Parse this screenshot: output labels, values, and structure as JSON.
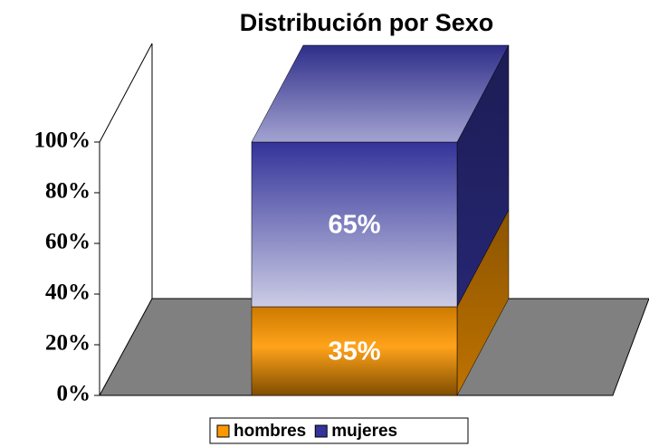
{
  "chart_data": {
    "type": "bar3d_stacked",
    "title": "Distribución por Sexo",
    "categories": [
      null
    ],
    "series": [
      {
        "name": "hombres",
        "color": "#ff9900",
        "values": [
          35
        ],
        "value_labels": [
          "35%"
        ]
      },
      {
        "name": "mujeres",
        "color": "#333399",
        "values": [
          65
        ],
        "value_labels": [
          "65%"
        ]
      }
    ],
    "ylim": [
      0,
      100
    ],
    "yticks": [
      {
        "value": 0,
        "label": "0%"
      },
      {
        "value": 20,
        "label": "20%"
      },
      {
        "value": 40,
        "label": "40%"
      },
      {
        "value": 60,
        "label": "60%"
      },
      {
        "value": 80,
        "label": "80%"
      },
      {
        "value": 100,
        "label": "100%"
      }
    ],
    "legend": "bottom"
  }
}
